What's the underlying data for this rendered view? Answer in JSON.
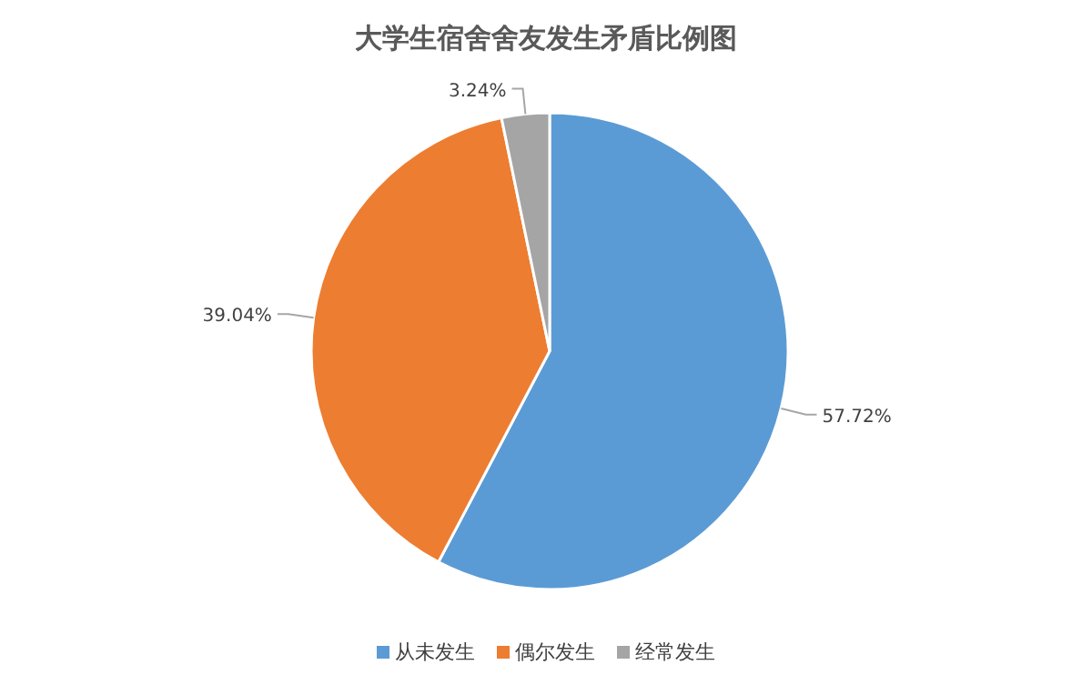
{
  "chart_data": {
    "type": "pie",
    "title": "大学生宿舍舍友发生矛盾比例图",
    "categories": [
      "从未发生",
      "偶尔发生",
      "经常发生"
    ],
    "values": [
      57.72,
      39.04,
      3.24
    ],
    "colors": [
      "#5b9bd5",
      "#ed7d31",
      "#a5a5a5"
    ],
    "value_labels": [
      "57.72%",
      "39.04%",
      "3.24%"
    ],
    "legend": "bottom"
  }
}
